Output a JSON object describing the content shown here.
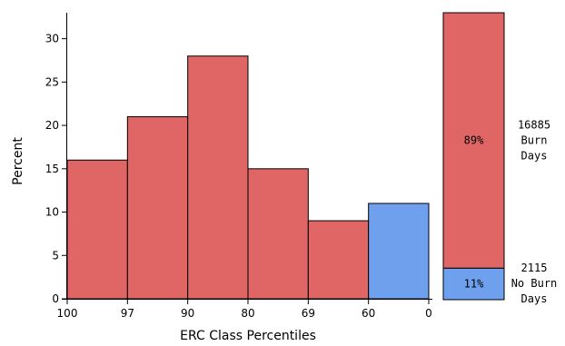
{
  "chart_data": [
    {
      "type": "bar",
      "xlabel": "ERC Class Percentiles",
      "ylabel": "Percent",
      "ylim": [
        0,
        33
      ],
      "yticks": [
        0,
        5,
        10,
        15,
        20,
        25,
        30
      ],
      "bin_edges": [
        "100",
        "97",
        "90",
        "80",
        "69",
        "60",
        "0"
      ],
      "values": [
        16,
        21,
        28,
        15,
        9,
        11
      ],
      "colors": [
        "#e06666",
        "#e06666",
        "#e06666",
        "#e06666",
        "#e06666",
        "#6fa0ee"
      ],
      "grid": false
    },
    {
      "type": "bar",
      "stacked": true,
      "segments": [
        {
          "value": 89,
          "label": "89%",
          "count": "16885",
          "desc_lines": [
            "Burn",
            "Days"
          ],
          "color": "#e06666"
        },
        {
          "value": 11,
          "label": "11%",
          "count": "2115",
          "desc_lines": [
            "No Burn",
            "Days"
          ],
          "color": "#6fa0ee"
        }
      ]
    }
  ]
}
